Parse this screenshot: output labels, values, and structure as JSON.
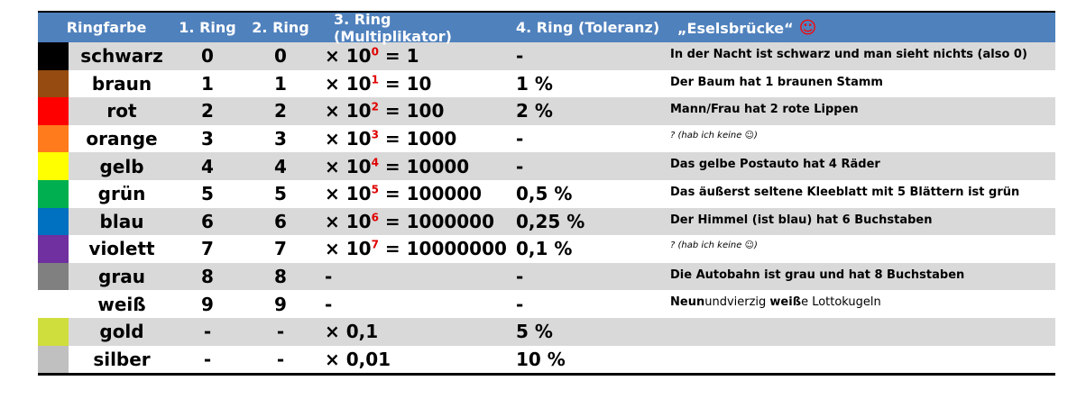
{
  "header": {
    "col_color": "Ringfarbe",
    "col_ring1": "1. Ring",
    "col_ring2": "2. Ring",
    "col_ring3": "3. Ring (Multiplikator)",
    "col_ring4": "4. Ring (Toleranz)",
    "col_mnemonic": "„Eselsbrücke“",
    "smiley_icon": "smiley-face-icon"
  },
  "colors": {
    "header_bg": "#4f81bd",
    "row_shade": "#d9d9d9",
    "exponent": "#e00000"
  },
  "rows": [
    {
      "swatch": "#000000",
      "name": "schwarz",
      "r1": "0",
      "r2": "0",
      "mul_pre": "× 10",
      "exp": "0",
      "mul_post": " = 1",
      "tol": "-",
      "mnemonic": "In der Nacht ist schwarz und man sieht nichts (also 0)"
    },
    {
      "swatch": "#964b10",
      "name": "braun",
      "r1": "1",
      "r2": "1",
      "mul_pre": "× 10",
      "exp": "1",
      "mul_post": " = 10",
      "tol": "1 %",
      "mnemonic": "Der Baum hat 1 braunen Stamm"
    },
    {
      "swatch": "#ff0000",
      "name": "rot",
      "r1": "2",
      "r2": "2",
      "mul_pre": "× 10",
      "exp": "2",
      "mul_post": " = 100",
      "tol": "2 %",
      "mnemonic": "Mann/Frau hat 2 rote Lippen"
    },
    {
      "swatch": "#ff7b1c",
      "name": "orange",
      "r1": "3",
      "r2": "3",
      "mul_pre": "× 10",
      "exp": "3",
      "mul_post": " = 1000",
      "tol": "-",
      "mnemonic": "? (hab ich keine ☺)"
    },
    {
      "swatch": "#ffff00",
      "name": "gelb",
      "r1": "4",
      "r2": "4",
      "mul_pre": "× 10",
      "exp": "4",
      "mul_post": " = 10000",
      "tol": "-",
      "mnemonic": "Das gelbe Postauto hat 4 Räder"
    },
    {
      "swatch": "#00b050",
      "name": "grün",
      "r1": "5",
      "r2": "5",
      "mul_pre": "× 10",
      "exp": "5",
      "mul_post": " = 100000",
      "tol": "0,5 %",
      "mnemonic": "Das äußerst seltene Kleeblatt mit 5 Blättern ist grün"
    },
    {
      "swatch": "#0070c0",
      "name": "blau",
      "r1": "6",
      "r2": "6",
      "mul_pre": "× 10",
      "exp": "6",
      "mul_post": " = 1000000",
      "tol": "0,25 %",
      "mnemonic": "Der Himmel (ist blau) hat 6 Buchstaben"
    },
    {
      "swatch": "#7030a0",
      "name": "violett",
      "r1": "7",
      "r2": "7",
      "mul_pre": "× 10",
      "exp": "7",
      "mul_post": " = 10000000",
      "tol": "0,1 %",
      "mnemonic": "? (hab ich keine ☺)"
    },
    {
      "swatch": "#808080",
      "name": "grau",
      "r1": "8",
      "r2": "8",
      "mul_pre": "-",
      "exp": "",
      "mul_post": "",
      "tol": "-",
      "mnemonic": "Die Autobahn ist grau und hat 8 Buchstaben"
    },
    {
      "swatch": "#ffffff",
      "name": "weiß",
      "r1": "9",
      "r2": "9",
      "mul_pre": "-",
      "exp": "",
      "mul_post": "",
      "tol": "-",
      "mnemonic": "Neunundvierzig weiße Lottokugeln"
    },
    {
      "swatch": "#cfde3c",
      "name": "gold",
      "r1": "-",
      "r2": "-",
      "mul_pre": "× 0,1",
      "exp": "",
      "mul_post": "",
      "tol": "5 %",
      "mnemonic": ""
    },
    {
      "swatch": "#c0c0c0",
      "name": "silber",
      "r1": "-",
      "r2": "-",
      "mul_pre": "× 0,01",
      "exp": "",
      "mul_post": "",
      "tol": "10 %",
      "mnemonic": ""
    }
  ],
  "mnemonic_weiss": {
    "p1": "Neun",
    "p2": "undvierzig ",
    "p3": "weiß",
    "p4": "e Lottokugeln"
  }
}
